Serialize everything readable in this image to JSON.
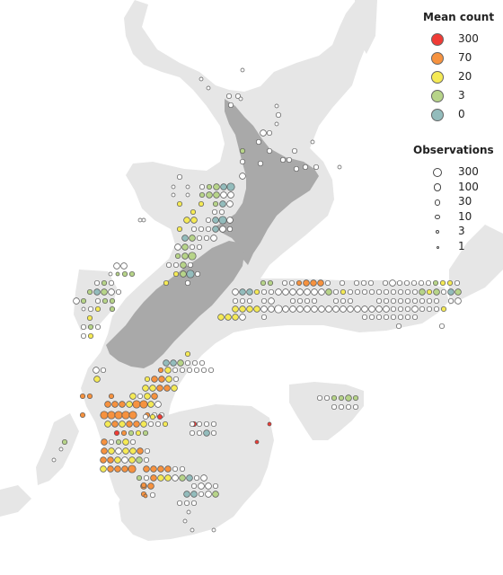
{
  "legend": {
    "mean_count": {
      "title": "Mean count",
      "items": [
        {
          "label": "300",
          "color": "#f03b35"
        },
        {
          "label": "70",
          "color": "#f6923f"
        },
        {
          "label": "20",
          "color": "#f5ea55"
        },
        {
          "label": "3",
          "color": "#b7d489"
        },
        {
          "label": "0",
          "color": "#93bcbc"
        }
      ]
    },
    "observations": {
      "title": "Observations",
      "items": [
        {
          "label": "300"
        },
        {
          "label": "100"
        },
        {
          "label": "30"
        },
        {
          "label": "10"
        },
        {
          "label": "3"
        },
        {
          "label": "1"
        }
      ]
    }
  },
  "colors": {
    "background": "#ffffff",
    "ocean_region": "#e6e6e6",
    "land": "#a9a9a9",
    "marker_stroke": "#555555",
    "marker_empty": "#ffffff"
  }
}
